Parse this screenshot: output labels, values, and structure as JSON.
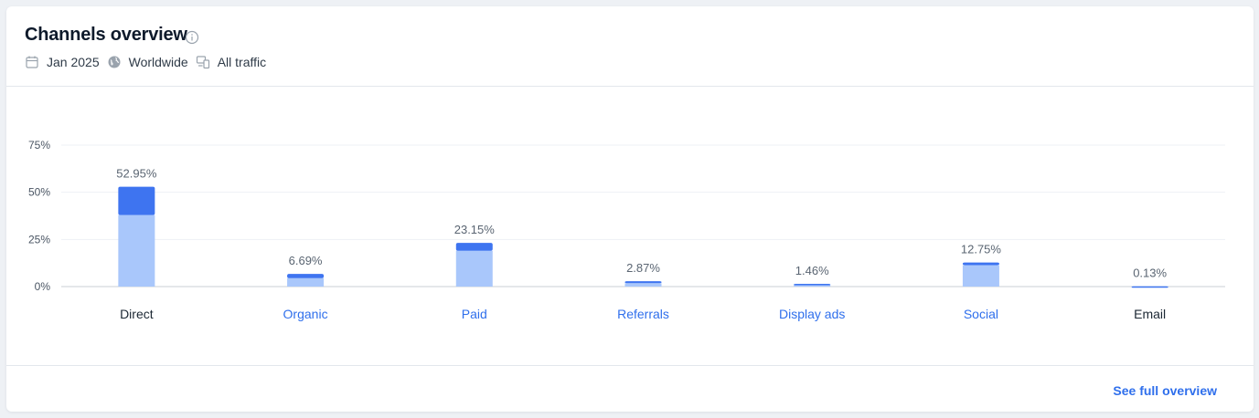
{
  "header": {
    "title": "Channels overview",
    "date": "Jan 2025",
    "region": "Worldwide",
    "traffic": "All traffic"
  },
  "footer": {
    "link_label": "See full overview"
  },
  "colors": {
    "bar_top": "#3e74f0",
    "bar_bottom": "#a9c7fb",
    "link": "#2f6fec",
    "text_dark": "#1b2733"
  },
  "chart_data": {
    "type": "bar",
    "title": "",
    "xlabel": "",
    "ylabel": "",
    "ylim": [
      0,
      75
    ],
    "yticks": [
      "0%",
      "25%",
      "50%",
      "75%"
    ],
    "grid": true,
    "categories": [
      "Direct",
      "Organic",
      "Paid",
      "Referrals",
      "Display ads",
      "Social",
      "Email"
    ],
    "category_linked": [
      false,
      true,
      true,
      true,
      true,
      true,
      false
    ],
    "values": [
      52.95,
      6.69,
      23.15,
      2.87,
      1.46,
      12.75,
      0.13
    ],
    "value_labels": [
      "52.95%",
      "6.69%",
      "23.15%",
      "2.87%",
      "1.46%",
      "12.75%",
      "0.13%"
    ],
    "series": [
      {
        "values": [
          37.9,
          4.5,
          19.0,
          1.8,
          0.9,
          11.4,
          0.1
        ]
      },
      {
        "values": [
          15.05,
          2.19,
          4.15,
          1.07,
          0.56,
          1.35,
          0.03
        ]
      }
    ]
  }
}
